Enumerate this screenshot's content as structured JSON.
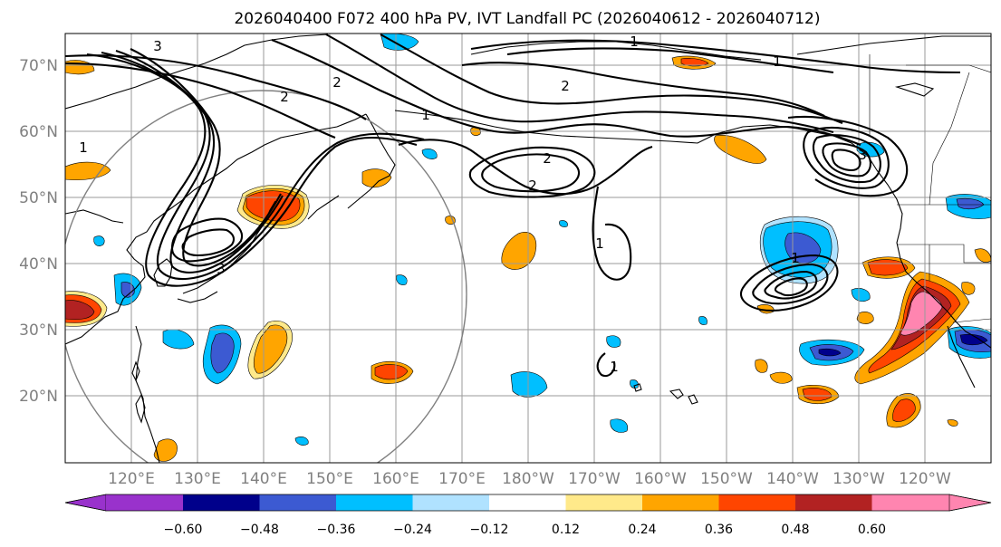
{
  "title": "2026040400 F072 400 hPa PV, IVT Landfall PC (2026040612 - 2026040712)",
  "map": {
    "lon_range": [
      110,
      250
    ],
    "lat_range": [
      10,
      75
    ],
    "lat_labels": [
      "20°N",
      "30°N",
      "40°N",
      "50°N",
      "60°N",
      "70°N"
    ],
    "lat_values": [
      20,
      30,
      40,
      50,
      60,
      70
    ],
    "lon_labels": [
      "120°E",
      "130°E",
      "140°E",
      "150°E",
      "160°E",
      "170°E",
      "180°W",
      "170°W",
      "160°W",
      "150°W",
      "140°W",
      "130°W",
      "120°W"
    ],
    "lon_values": [
      120,
      130,
      140,
      150,
      160,
      170,
      180,
      190,
      200,
      210,
      220,
      230,
      240
    ]
  },
  "contour_labels": [
    {
      "text": "1"
    },
    {
      "text": "1"
    },
    {
      "text": "2"
    },
    {
      "text": "2"
    },
    {
      "text": "2"
    },
    {
      "text": "2"
    },
    {
      "text": "2"
    },
    {
      "text": "1"
    },
    {
      "text": "1"
    },
    {
      "text": "1"
    },
    {
      "text": "3"
    },
    {
      "text": "1"
    },
    {
      "text": "1"
    },
    {
      "text": "3"
    },
    {
      "text": "3"
    }
  ],
  "colorbar": {
    "ticks": [
      "−0.60",
      "−0.48",
      "−0.36",
      "−0.24",
      "−0.12",
      "0.12",
      "0.24",
      "0.36",
      "0.48",
      "0.60"
    ],
    "colors": [
      "#9932cc",
      "#00008b",
      "#3c5ad2",
      "#00bfff",
      "#b0e2ff",
      "#ffffff",
      "#ffe98a",
      "#ffa500",
      "#ff4500",
      "#b22222",
      "#ff85b0"
    ],
    "min_extend_color": "#9932cc",
    "max_extend_color": "#ff85b0"
  }
}
